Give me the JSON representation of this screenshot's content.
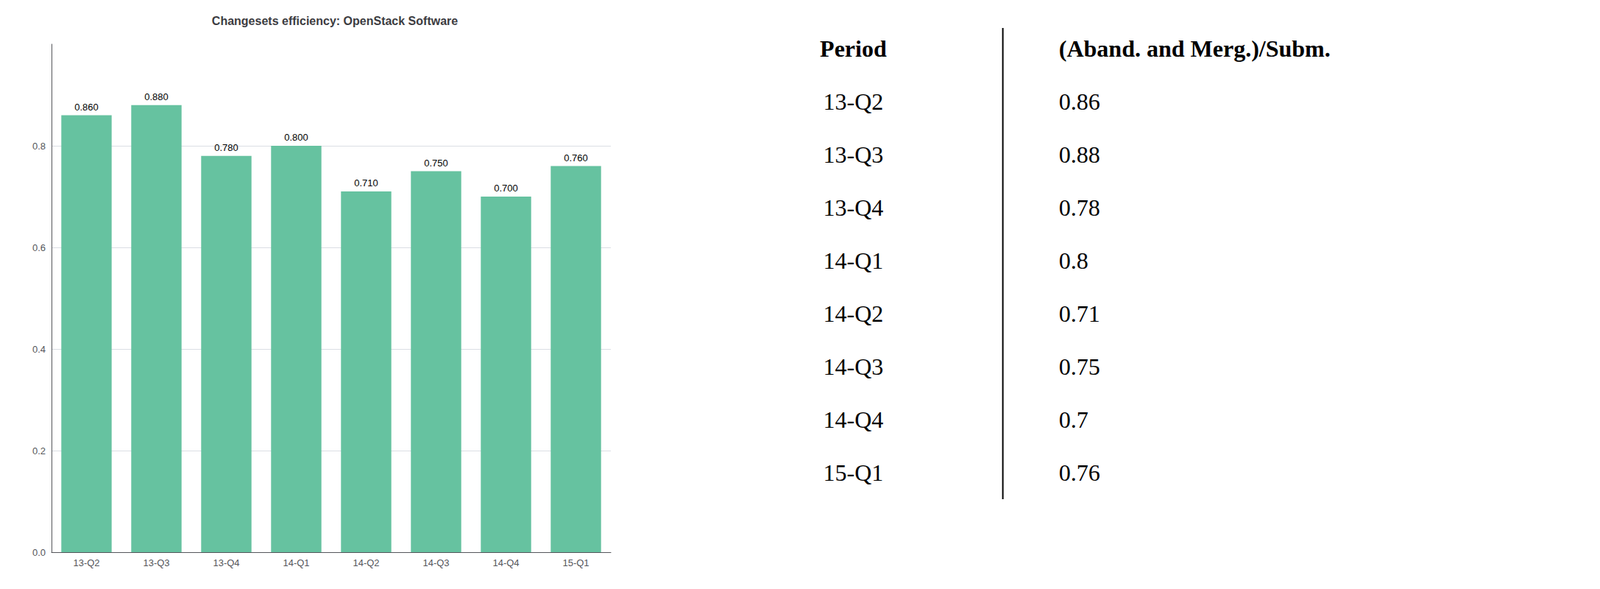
{
  "chart_data": [
    {
      "type": "bar",
      "title": "Changesets efficiency: OpenStack Software",
      "categories": [
        "13-Q2",
        "13-Q3",
        "13-Q4",
        "14-Q1",
        "14-Q2",
        "14-Q3",
        "14-Q4",
        "15-Q1"
      ],
      "values": [
        0.86,
        0.88,
        0.78,
        0.8,
        0.71,
        0.75,
        0.7,
        0.76
      ],
      "value_labels": [
        "0.860",
        "0.880",
        "0.780",
        "0.800",
        "0.710",
        "0.750",
        "0.700",
        "0.760"
      ],
      "data_labels": true,
      "color": "#66c2a0",
      "ylim": [
        0.0,
        1.0
      ],
      "yticks": [
        {
          "value": 0.0,
          "label": "0.0"
        },
        0.2,
        0.4,
        0.6,
        0.8
      ],
      "grid": true
    },
    {
      "type": "table",
      "column_headers": [
        "Period",
        "(Aband. and Merg.)/Subm."
      ],
      "categories": [
        "13-Q2",
        "13-Q3",
        "13-Q4",
        "14-Q1",
        "14-Q2",
        "14-Q3",
        "14-Q4",
        "15-Q1"
      ],
      "values": [
        0.86,
        0.88,
        0.78,
        0.8,
        0.71,
        0.75,
        0.7,
        0.76
      ]
    }
  ]
}
